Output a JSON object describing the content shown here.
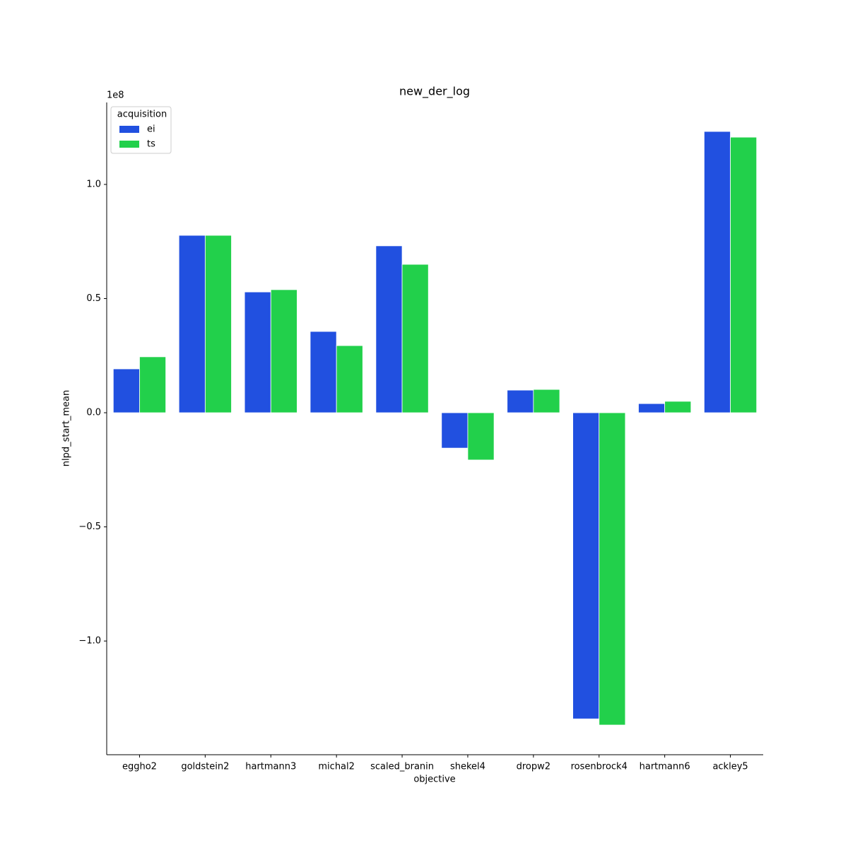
{
  "chart_data": {
    "type": "bar",
    "title": "new_der_log",
    "x_label": "objective",
    "y_label": "nlpd_start_mean",
    "y_offset_label": "1e8",
    "categories": [
      "eggho2",
      "goldstein2",
      "hartmann3",
      "michal2",
      "scaled_branin",
      "shekel4",
      "dropw2",
      "rosenbrock4",
      "hartmann6",
      "ackley5"
    ],
    "series": [
      {
        "name": "ei",
        "color": "#2150e0",
        "values": [
          0.192,
          0.777,
          0.529,
          0.356,
          0.731,
          -0.155,
          0.099,
          -1.341,
          0.04,
          1.232
        ]
      },
      {
        "name": "ts",
        "color": "#22d04b",
        "values": [
          0.245,
          0.777,
          0.539,
          0.294,
          0.65,
          -0.207,
          0.102,
          -1.368,
          0.05,
          1.207
        ]
      }
    ],
    "legend_title": "acquisition",
    "legend_position": "upper-left",
    "ylim": [
      -1.498,
      1.359
    ],
    "yticks": [
      {
        "value": -1,
        "label": "−1.0"
      },
      {
        "value": -0.5,
        "label": "−0.5"
      },
      {
        "value": 0,
        "label": "0.0"
      },
      {
        "value": 0.5,
        "label": "0.5"
      },
      {
        "value": 1,
        "label": "1.0"
      }
    ],
    "grid": false
  }
}
